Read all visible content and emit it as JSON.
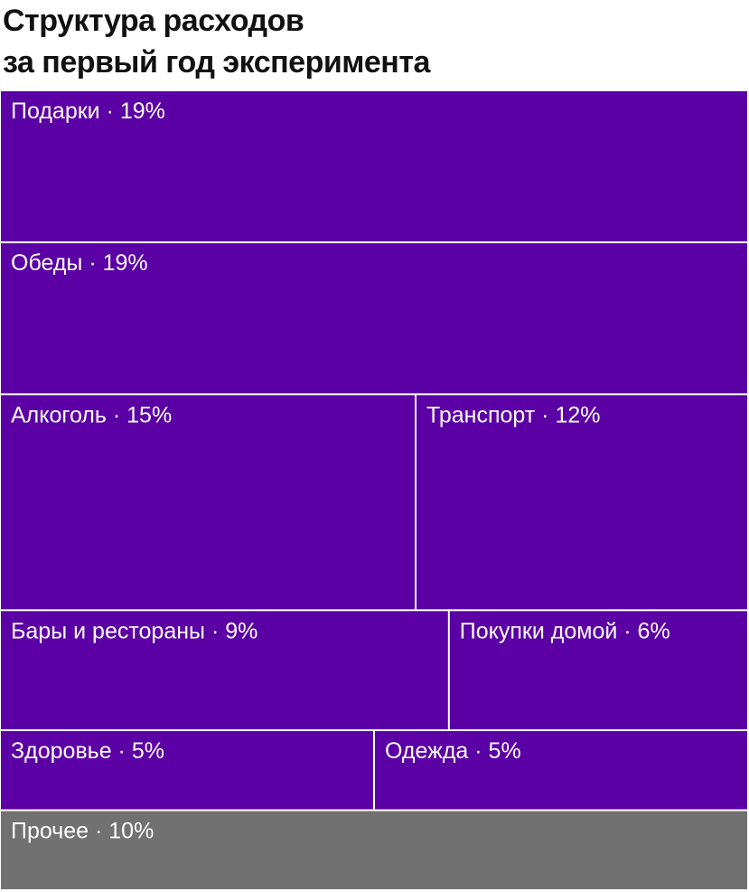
{
  "header": {
    "title_line1": "Структура расходов",
    "title_line2": "за первый год эксперимента"
  },
  "colors": {
    "primary": "#5b00a5",
    "other": "#717171",
    "border": "#ffffff",
    "label": "#ffffff"
  },
  "chart_data": {
    "type": "treemap",
    "title": "Структура расходов за первый год эксперимента",
    "unit": "%",
    "separator": " · ",
    "items": [
      {
        "name": "Подарки",
        "value": 19,
        "color": "#5b00a5"
      },
      {
        "name": "Обеды",
        "value": 19,
        "color": "#5b00a5"
      },
      {
        "name": "Алкоголь",
        "value": 15,
        "color": "#5b00a5"
      },
      {
        "name": "Транспорт",
        "value": 12,
        "color": "#5b00a5"
      },
      {
        "name": "Бары и рестораны",
        "value": 9,
        "color": "#5b00a5"
      },
      {
        "name": "Покупки домой",
        "value": 6,
        "color": "#5b00a5"
      },
      {
        "name": "Здоровье",
        "value": 5,
        "color": "#5b00a5"
      },
      {
        "name": "Одежда",
        "value": 5,
        "color": "#5b00a5"
      },
      {
        "name": "Прочее",
        "value": 10,
        "color": "#717171"
      }
    ]
  }
}
